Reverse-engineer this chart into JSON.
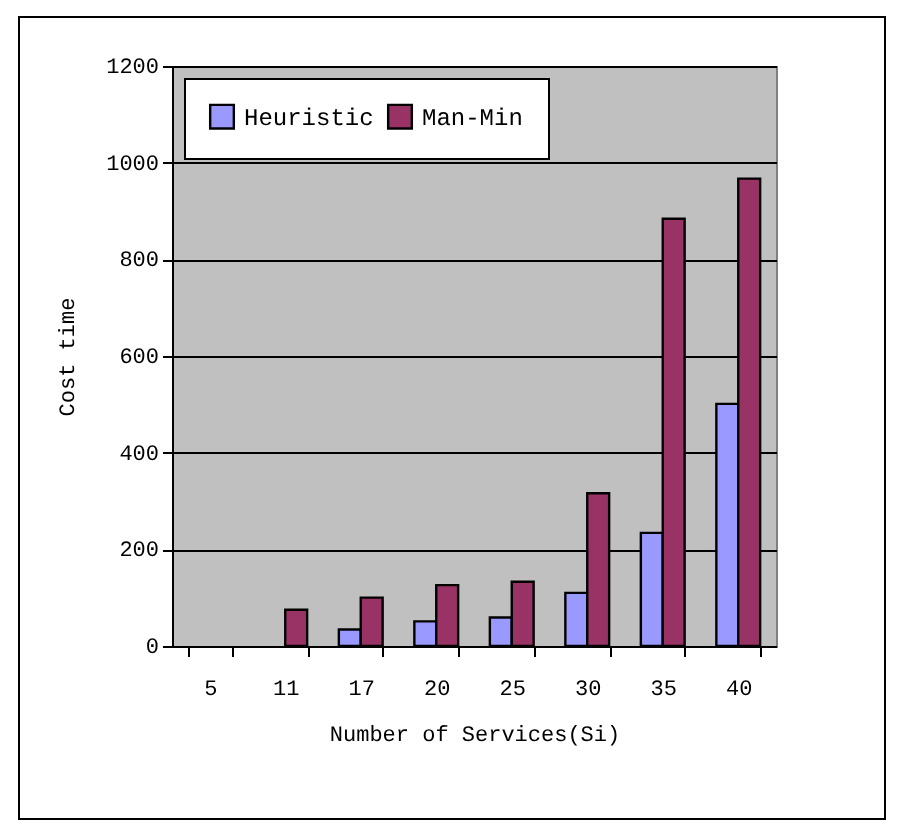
{
  "chart_data": {
    "type": "bar",
    "xlabel": "Number of Services(Si)",
    "ylabel": "Cost time",
    "categories": [
      "5",
      "11",
      "17",
      "20",
      "25",
      "30",
      "35",
      "40"
    ],
    "series": [
      {
        "name": "Heuristic",
        "color": "#9999ff",
        "values": [
          null,
          null,
          34,
          51,
          59,
          110,
          234,
          501
        ]
      },
      {
        "name": "Man-Min",
        "color": "#993366",
        "values": [
          null,
          75,
          100,
          126,
          133,
          316,
          884,
          967
        ]
      }
    ],
    "ylim": [
      0,
      1200
    ],
    "yticks": [
      0,
      200,
      400,
      600,
      800,
      1000,
      1200
    ],
    "grid": "y",
    "legend": "top left"
  }
}
